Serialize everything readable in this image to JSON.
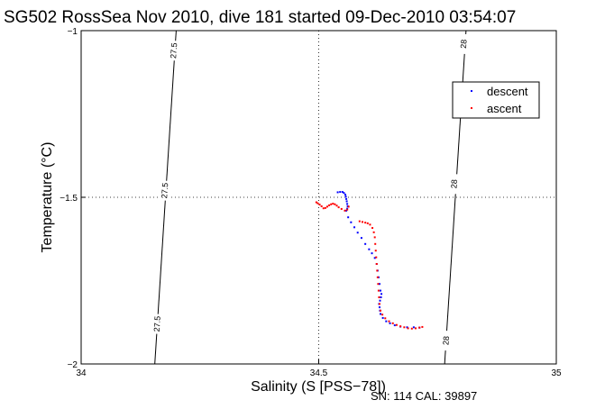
{
  "chart_data": {
    "type": "scatter",
    "title": "SG502 RossSea Nov 2010, dive 181 started 09-Dec-2010 03:54:07",
    "xlabel": "Salinity (S [PSS−78])",
    "ylabel": "Temperature (°C)",
    "xlim": [
      34,
      35
    ],
    "ylim": [
      -2,
      -1
    ],
    "x_ticks": [
      34,
      34.5,
      35
    ],
    "y_ticks": [
      -2,
      -1.5,
      -1
    ],
    "x_tick_labels": [
      "34",
      "34.5",
      "35"
    ],
    "y_tick_labels": [
      "−2",
      "−1.5",
      "−1"
    ],
    "grid": "dotted at 34.5 and −1.5",
    "legend_position": "top-right",
    "isopycnals": [
      {
        "label": "27.5",
        "points": [
          [
            34.155,
            -2.0
          ],
          [
            34.2,
            -1.0
          ]
        ],
        "label_positions": [
          [
            34.195,
            -1.06
          ],
          [
            34.176,
            -1.48
          ],
          [
            34.16,
            -1.88
          ]
        ]
      },
      {
        "label": "28",
        "points": [
          [
            34.765,
            -2.0
          ],
          [
            34.81,
            -1.0
          ]
        ],
        "label_positions": [
          [
            34.805,
            -1.04
          ],
          [
            34.785,
            -1.46
          ],
          [
            34.768,
            -1.93
          ]
        ]
      }
    ],
    "series": [
      {
        "name": "descent",
        "color": "#0000ff",
        "points": [
          [
            34.54,
            -1.485
          ],
          [
            34.545,
            -1.484
          ],
          [
            34.55,
            -1.484
          ],
          [
            34.553,
            -1.487
          ],
          [
            34.556,
            -1.492
          ],
          [
            34.557,
            -1.498
          ],
          [
            34.558,
            -1.505
          ],
          [
            34.559,
            -1.512
          ],
          [
            34.56,
            -1.52
          ],
          [
            34.561,
            -1.527
          ],
          [
            34.56,
            -1.534
          ],
          [
            34.558,
            -1.54
          ],
          [
            34.562,
            -1.56
          ],
          [
            34.568,
            -1.575
          ],
          [
            34.575,
            -1.59
          ],
          [
            34.582,
            -1.606
          ],
          [
            34.59,
            -1.622
          ],
          [
            34.598,
            -1.64
          ],
          [
            34.606,
            -1.656
          ],
          [
            34.612,
            -1.668
          ],
          [
            34.618,
            -1.682
          ],
          [
            34.622,
            -1.7
          ],
          [
            34.624,
            -1.72
          ],
          [
            34.626,
            -1.74
          ],
          [
            34.628,
            -1.76
          ],
          [
            34.63,
            -1.78
          ],
          [
            34.632,
            -1.79
          ],
          [
            34.631,
            -1.8
          ],
          [
            34.629,
            -1.81
          ],
          [
            34.627,
            -1.82
          ],
          [
            34.628,
            -1.83
          ],
          [
            34.629,
            -1.84
          ],
          [
            34.63,
            -1.85
          ],
          [
            34.635,
            -1.862
          ],
          [
            34.642,
            -1.872
          ],
          [
            34.65,
            -1.878
          ],
          [
            34.66,
            -1.884
          ],
          [
            34.672,
            -1.888
          ],
          [
            34.686,
            -1.89
          ],
          [
            34.7,
            -1.89
          ],
          [
            34.712,
            -1.891
          ]
        ]
      },
      {
        "name": "ascent",
        "color": "#ff0000",
        "points": [
          [
            34.495,
            -1.515
          ],
          [
            34.498,
            -1.518
          ],
          [
            34.502,
            -1.522
          ],
          [
            34.506,
            -1.527
          ],
          [
            34.51,
            -1.533
          ],
          [
            34.514,
            -1.532
          ],
          [
            34.518,
            -1.528
          ],
          [
            34.522,
            -1.524
          ],
          [
            34.526,
            -1.521
          ],
          [
            34.53,
            -1.519
          ],
          [
            34.534,
            -1.521
          ],
          [
            34.538,
            -1.525
          ],
          [
            34.542,
            -1.53
          ],
          [
            34.548,
            -1.535
          ],
          [
            34.555,
            -1.54
          ],
          [
            34.56,
            -1.537
          ],
          [
            34.563,
            -1.528
          ],
          [
            34.586,
            -1.572
          ],
          [
            34.592,
            -1.574
          ],
          [
            34.598,
            -1.576
          ],
          [
            34.603,
            -1.578
          ],
          [
            34.608,
            -1.582
          ],
          [
            34.613,
            -1.592
          ],
          [
            34.616,
            -1.605
          ],
          [
            34.618,
            -1.62
          ],
          [
            34.619,
            -1.64
          ],
          [
            34.62,
            -1.66
          ],
          [
            34.621,
            -1.68
          ],
          [
            34.622,
            -1.7
          ],
          [
            34.623,
            -1.72
          ],
          [
            34.624,
            -1.74
          ],
          [
            34.625,
            -1.76
          ],
          [
            34.626,
            -1.78
          ],
          [
            34.627,
            -1.8
          ],
          [
            34.628,
            -1.82
          ],
          [
            34.63,
            -1.84
          ],
          [
            34.634,
            -1.852
          ],
          [
            34.64,
            -1.863
          ],
          [
            34.648,
            -1.872
          ],
          [
            34.656,
            -1.878
          ],
          [
            34.664,
            -1.883
          ],
          [
            34.672,
            -1.887
          ],
          [
            34.68,
            -1.89
          ],
          [
            34.688,
            -1.893
          ],
          [
            34.696,
            -1.894
          ],
          [
            34.704,
            -1.893
          ],
          [
            34.712,
            -1.891
          ],
          [
            34.718,
            -1.889
          ]
        ]
      }
    ]
  },
  "footer": "SN: 114  CAL: 39897"
}
